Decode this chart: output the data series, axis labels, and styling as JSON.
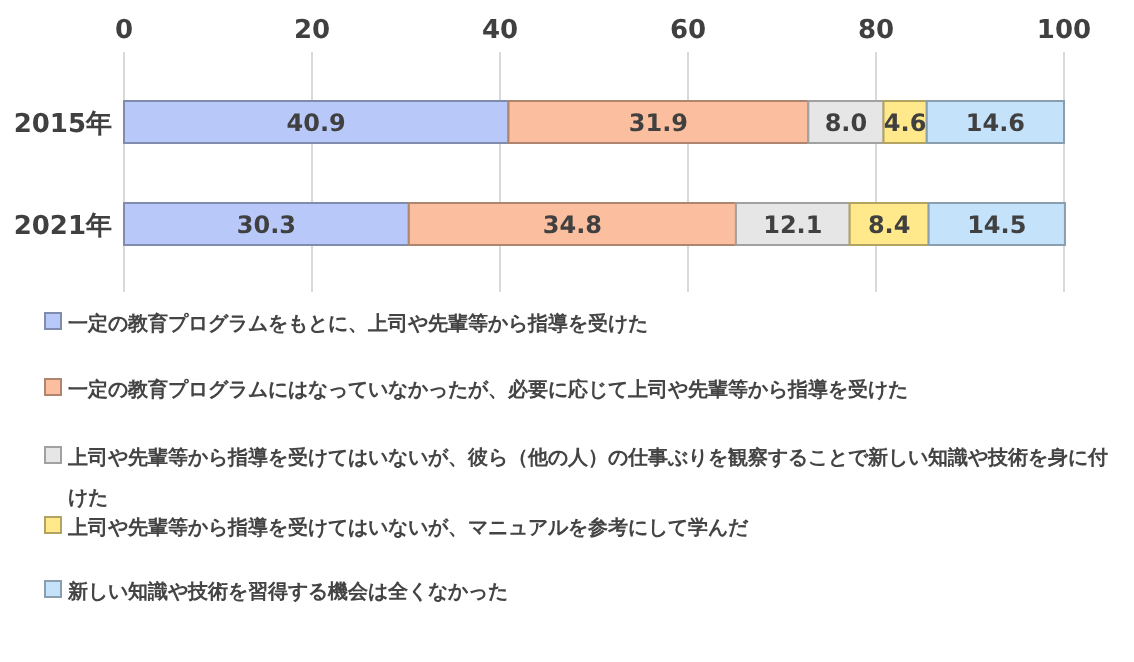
{
  "chart_data": {
    "type": "bar",
    "orientation": "horizontal",
    "stacked": true,
    "categories": [
      "2015年",
      "2021年"
    ],
    "series": [
      {
        "name": "一定の教育プログラムをもとに、上司や先輩等から指導を受けた",
        "color": "#b8c8f8",
        "values": [
          40.9,
          30.3
        ],
        "value_labels": [
          "40.9",
          "30.3"
        ]
      },
      {
        "name": "一定の教育プログラムにはなっていなかったが、必要に応じて上司や先輩等から指導を受けた",
        "color": "#fbbf9f",
        "values": [
          31.9,
          34.8
        ],
        "value_labels": [
          "31.9",
          "34.8"
        ]
      },
      {
        "name": "上司や先輩等から指導を受けてはいないが、彼ら（他の人）の仕事ぶりを観察することで新しい知識や技術を身に付けた",
        "color": "#e6e6e6",
        "values": [
          8.0,
          12.1
        ],
        "value_labels": [
          "8.0",
          "12.1"
        ]
      },
      {
        "name": "上司や先輩等から指導を受けてはいないが、マニュアルを参考にして学んだ",
        "color": "#ffe98a",
        "values": [
          4.6,
          8.4
        ],
        "value_labels": [
          "4.6",
          "8.4"
        ]
      },
      {
        "name": "新しい知識や技術を習得する機会は全くなかった",
        "color": "#c5e2fb",
        "values": [
          14.6,
          14.5
        ],
        "value_labels": [
          "14.6",
          "14.5"
        ]
      }
    ],
    "xlim": [
      0,
      100
    ],
    "xticks": [
      0,
      20,
      40,
      60,
      80,
      100
    ],
    "grid": "x",
    "legend": "bottom"
  }
}
